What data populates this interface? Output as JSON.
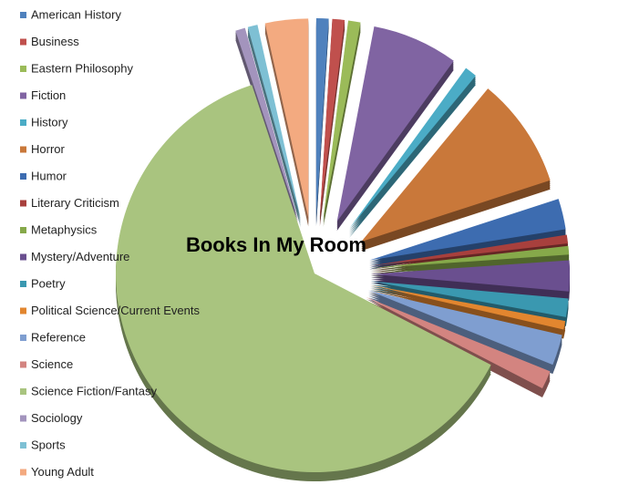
{
  "chart_data": {
    "type": "pie",
    "title": "Books In My Room",
    "categories": [
      "American History",
      "Business",
      "Eastern Philosophy",
      "Fiction",
      "History",
      "Horror",
      "Humor",
      "Literary Criticism",
      "Metaphysics",
      "Mystery/Adventure",
      "Poetry",
      "Political Science/Current Events",
      "Reference",
      "Science",
      "Science Fiction/Fantasy",
      "Sociology",
      "Sports",
      "Young Adult"
    ],
    "values": [
      1,
      1,
      1,
      7,
      1,
      9,
      2.5,
      0.7,
      0.7,
      2.5,
      1.5,
      0.7,
      2.5,
      1.5,
      62.3,
      0.8,
      0.8,
      3.5
    ],
    "colors": [
      "#4f81bd",
      "#c0504d",
      "#9bbb59",
      "#8064a2",
      "#4bacc6",
      "#c9783a",
      "#3d6cb0",
      "#a8403d",
      "#86a94a",
      "#6a4f8f",
      "#3a98b0",
      "#e2862f",
      "#7f9ed0",
      "#d38480",
      "#a9c47f",
      "#a394bd",
      "#7ec0d4",
      "#f3aa80"
    ]
  }
}
